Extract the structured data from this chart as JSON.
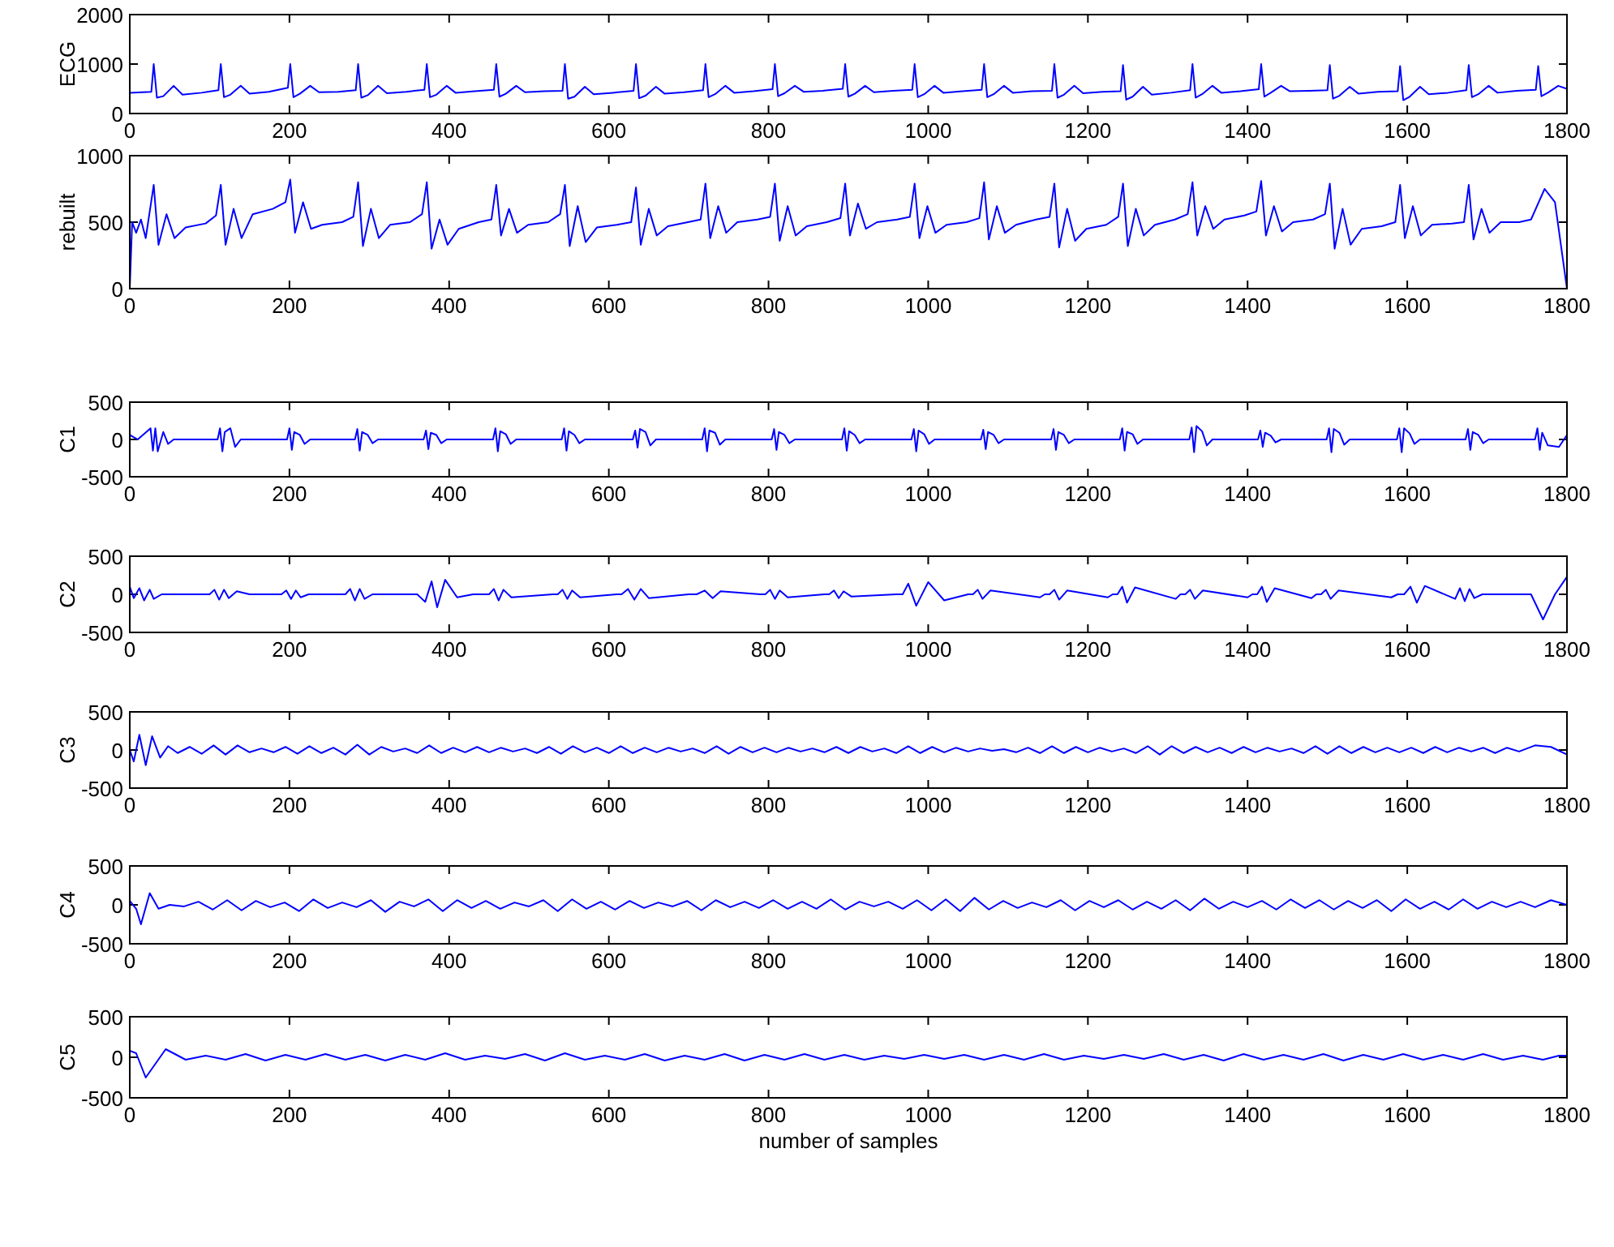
{
  "chart_data": [
    {
      "type": "line",
      "ylabel": "ECG",
      "xlim": [
        0,
        1800
      ],
      "xticks": [
        0,
        200,
        400,
        600,
        800,
        1000,
        1200,
        1400,
        1600,
        1800
      ],
      "ylim": [
        0,
        2000
      ],
      "yticks": [
        0,
        1000,
        2000
      ],
      "x": [
        0,
        27,
        30,
        34,
        42,
        55,
        66,
        90,
        111,
        114,
        118,
        126,
        139,
        150,
        174,
        198,
        201,
        205,
        213,
        226,
        237,
        261,
        283,
        286,
        290,
        298,
        311,
        322,
        346,
        369,
        372,
        376,
        384,
        397,
        408,
        432,
        456,
        459,
        463,
        471,
        484,
        495,
        519,
        542,
        545,
        549,
        557,
        570,
        581,
        605,
        631,
        634,
        638,
        646,
        659,
        670,
        694,
        718,
        721,
        725,
        733,
        746,
        757,
        781,
        805,
        808,
        812,
        820,
        833,
        844,
        868,
        893,
        896,
        900,
        908,
        921,
        932,
        956,
        980,
        983,
        987,
        995,
        1008,
        1019,
        1043,
        1067,
        1070,
        1074,
        1082,
        1095,
        1106,
        1130,
        1155,
        1158,
        1162,
        1170,
        1183,
        1194,
        1218,
        1241,
        1244,
        1248,
        1256,
        1269,
        1280,
        1304,
        1328,
        1331,
        1335,
        1343,
        1356,
        1367,
        1391,
        1414,
        1417,
        1421,
        1429,
        1442,
        1453,
        1477,
        1500,
        1503,
        1507,
        1515,
        1528,
        1539,
        1563,
        1588,
        1591,
        1595,
        1603,
        1616,
        1627,
        1651,
        1674,
        1677,
        1681,
        1689,
        1702,
        1713,
        1737,
        1761,
        1764,
        1768,
        1776,
        1789,
        1800
      ],
      "series": [
        {
          "color": "#0000ff",
          "values": [
            420,
            440,
            1000,
            320,
            350,
            560,
            380,
            420,
            470,
            1000,
            330,
            380,
            560,
            400,
            440,
            520,
            1000,
            330,
            400,
            560,
            430,
            440,
            470,
            1000,
            320,
            370,
            560,
            410,
            440,
            480,
            1000,
            330,
            380,
            560,
            420,
            450,
            480,
            1000,
            340,
            400,
            560,
            430,
            450,
            460,
            1000,
            300,
            340,
            540,
            390,
            420,
            460,
            1000,
            310,
            360,
            540,
            400,
            430,
            470,
            1000,
            330,
            390,
            560,
            420,
            450,
            490,
            1000,
            350,
            410,
            560,
            440,
            460,
            500,
            1000,
            340,
            400,
            560,
            430,
            460,
            480,
            1000,
            330,
            390,
            560,
            420,
            450,
            480,
            1000,
            330,
            390,
            560,
            420,
            450,
            460,
            1000,
            320,
            380,
            560,
            410,
            440,
            450,
            980,
            280,
            340,
            540,
            380,
            420,
            470,
            1000,
            320,
            390,
            560,
            420,
            450,
            490,
            1000,
            340,
            420,
            560,
            450,
            460,
            470,
            980,
            300,
            360,
            540,
            400,
            440,
            450,
            960,
            270,
            340,
            540,
            390,
            420,
            470,
            980,
            330,
            390,
            560,
            420,
            460,
            480,
            960,
            350,
            420,
            560,
            500
          ]
        }
      ]
    },
    {
      "type": "line",
      "ylabel": "rebuilt",
      "xlim": [
        0,
        1800
      ],
      "xticks": [
        0,
        200,
        400,
        600,
        800,
        1000,
        1200,
        1400,
        1600,
        1800
      ],
      "ylim": [
        0,
        1000
      ],
      "yticks": [
        0,
        500,
        1000
      ],
      "x": [
        0,
        3,
        8,
        14,
        20,
        30,
        36,
        46,
        56,
        70,
        95,
        108,
        114,
        120,
        130,
        140,
        154,
        179,
        195,
        201,
        207,
        217,
        227,
        241,
        266,
        280,
        286,
        292,
        302,
        312,
        326,
        351,
        366,
        372,
        378,
        388,
        398,
        412,
        437,
        453,
        459,
        465,
        475,
        485,
        499,
        524,
        539,
        545,
        551,
        561,
        571,
        585,
        610,
        628,
        634,
        640,
        650,
        660,
        674,
        699,
        715,
        721,
        727,
        737,
        747,
        761,
        786,
        802,
        808,
        814,
        824,
        834,
        848,
        873,
        890,
        896,
        902,
        912,
        922,
        936,
        961,
        977,
        983,
        989,
        999,
        1009,
        1023,
        1048,
        1064,
        1070,
        1076,
        1086,
        1096,
        1110,
        1135,
        1152,
        1158,
        1164,
        1174,
        1184,
        1198,
        1223,
        1238,
        1244,
        1250,
        1260,
        1270,
        1284,
        1309,
        1325,
        1331,
        1337,
        1347,
        1357,
        1371,
        1396,
        1411,
        1417,
        1423,
        1433,
        1443,
        1457,
        1482,
        1497,
        1503,
        1509,
        1519,
        1529,
        1543,
        1568,
        1585,
        1591,
        1597,
        1607,
        1617,
        1631,
        1656,
        1671,
        1677,
        1683,
        1693,
        1703,
        1717,
        1740,
        1755,
        1772,
        1785,
        1800
      ],
      "series": [
        {
          "color": "#0000ff",
          "values": [
            0,
            500,
            420,
            520,
            380,
            780,
            330,
            560,
            380,
            460,
            490,
            550,
            780,
            330,
            600,
            380,
            560,
            600,
            650,
            820,
            420,
            650,
            450,
            480,
            500,
            540,
            800,
            320,
            600,
            380,
            480,
            500,
            560,
            800,
            300,
            520,
            330,
            450,
            500,
            520,
            780,
            400,
            600,
            420,
            480,
            500,
            560,
            780,
            320,
            620,
            350,
            460,
            480,
            500,
            760,
            330,
            600,
            400,
            470,
            500,
            520,
            790,
            380,
            620,
            420,
            500,
            520,
            540,
            790,
            360,
            620,
            400,
            470,
            500,
            530,
            790,
            400,
            640,
            450,
            500,
            520,
            540,
            790,
            380,
            620,
            420,
            480,
            500,
            530,
            800,
            370,
            620,
            420,
            480,
            520,
            540,
            790,
            310,
            600,
            360,
            450,
            480,
            540,
            790,
            320,
            600,
            400,
            480,
            520,
            560,
            800,
            400,
            620,
            450,
            520,
            550,
            580,
            810,
            400,
            620,
            430,
            500,
            520,
            560,
            790,
            300,
            600,
            330,
            450,
            470,
            500,
            780,
            380,
            620,
            400,
            480,
            490,
            500,
            780,
            370,
            600,
            420,
            500,
            500,
            520,
            750,
            650,
            0
          ]
        }
      ]
    },
    {
      "type": "line",
      "ylabel": "C1",
      "xlim": [
        0,
        1800
      ],
      "xticks": [
        0,
        200,
        400,
        600,
        800,
        1000,
        1200,
        1400,
        1600,
        1800
      ],
      "ylim": [
        -500,
        500
      ],
      "yticks": [
        -500,
        0,
        500
      ],
      "x": [
        0,
        10,
        26,
        29,
        32,
        35,
        42,
        48,
        55,
        110,
        113,
        116,
        119,
        126,
        132,
        139,
        197,
        200,
        203,
        206,
        213,
        219,
        226,
        282,
        285,
        288,
        291,
        298,
        304,
        311,
        368,
        371,
        374,
        377,
        384,
        390,
        397,
        455,
        458,
        461,
        464,
        471,
        477,
        484,
        541,
        544,
        547,
        550,
        557,
        563,
        570,
        630,
        633,
        636,
        639,
        646,
        652,
        659,
        717,
        720,
        723,
        726,
        733,
        739,
        746,
        804,
        807,
        810,
        813,
        820,
        826,
        833,
        892,
        895,
        898,
        901,
        908,
        914,
        921,
        979,
        982,
        985,
        988,
        995,
        1001,
        1008,
        1066,
        1069,
        1072,
        1075,
        1082,
        1088,
        1095,
        1154,
        1157,
        1160,
        1163,
        1170,
        1176,
        1183,
        1240,
        1243,
        1246,
        1249,
        1256,
        1262,
        1269,
        1327,
        1330,
        1333,
        1336,
        1343,
        1349,
        1356,
        1413,
        1416,
        1419,
        1422,
        1429,
        1435,
        1442,
        1499,
        1502,
        1505,
        1508,
        1515,
        1521,
        1528,
        1587,
        1590,
        1593,
        1596,
        1603,
        1609,
        1616,
        1673,
        1676,
        1679,
        1682,
        1689,
        1695,
        1702,
        1760,
        1763,
        1766,
        1769,
        1776,
        1790,
        1800
      ],
      "series": [
        {
          "color": "#0000ff",
          "values": [
            60,
            0,
            150,
            -150,
            150,
            -160,
            100,
            -60,
            0,
            0,
            150,
            -160,
            100,
            150,
            -100,
            0,
            0,
            150,
            -140,
            100,
            60,
            -60,
            0,
            0,
            140,
            -150,
            100,
            60,
            -50,
            0,
            0,
            120,
            -130,
            90,
            60,
            -50,
            0,
            0,
            150,
            -160,
            110,
            70,
            -60,
            0,
            0,
            150,
            -150,
            110,
            60,
            -50,
            0,
            0,
            120,
            -110,
            140,
            100,
            -80,
            0,
            0,
            150,
            -160,
            120,
            90,
            -70,
            0,
            0,
            140,
            -140,
            100,
            60,
            -50,
            0,
            0,
            150,
            -150,
            110,
            60,
            -50,
            0,
            0,
            140,
            -160,
            120,
            70,
            -60,
            0,
            0,
            130,
            -130,
            100,
            60,
            -50,
            0,
            0,
            140,
            -140,
            100,
            60,
            -50,
            0,
            0,
            150,
            -150,
            100,
            70,
            -60,
            0,
            0,
            160,
            -170,
            180,
            110,
            -80,
            0,
            0,
            120,
            -100,
            90,
            50,
            -40,
            0,
            0,
            150,
            -170,
            140,
            90,
            -70,
            0,
            0,
            150,
            -170,
            150,
            80,
            -60,
            0,
            0,
            140,
            -140,
            100,
            60,
            -50,
            0,
            0,
            150,
            -140,
            90,
            -80,
            -100,
            60
          ]
        }
      ]
    },
    {
      "type": "line",
      "ylabel": "C2",
      "xlim": [
        0,
        1800
      ],
      "xticks": [
        0,
        200,
        400,
        600,
        800,
        1000,
        1200,
        1400,
        1600,
        1800
      ],
      "ylim": [
        -500,
        500
      ],
      "yticks": [
        -500,
        0,
        500
      ],
      "x": [
        0,
        5,
        12,
        18,
        25,
        30,
        40,
        100,
        106,
        112,
        118,
        124,
        134,
        150,
        190,
        196,
        202,
        208,
        214,
        224,
        270,
        276,
        282,
        288,
        294,
        304,
        360,
        370,
        378,
        385,
        395,
        410,
        430,
        450,
        456,
        462,
        468,
        478,
        530,
        536,
        542,
        548,
        554,
        564,
        610,
        616,
        624,
        632,
        640,
        650,
        700,
        710,
        720,
        730,
        740,
        790,
        796,
        802,
        808,
        814,
        824,
        870,
        876,
        882,
        888,
        894,
        904,
        960,
        968,
        975,
        985,
        1000,
        1020,
        1050,
        1056,
        1062,
        1068,
        1078,
        1140,
        1146,
        1152,
        1158,
        1164,
        1174,
        1225,
        1231,
        1237,
        1243,
        1249,
        1259,
        1310,
        1316,
        1322,
        1328,
        1334,
        1344,
        1400,
        1406,
        1412,
        1418,
        1424,
        1434,
        1480,
        1486,
        1492,
        1498,
        1504,
        1514,
        1580,
        1588,
        1596,
        1604,
        1612,
        1622,
        1660,
        1666,
        1672,
        1678,
        1684,
        1694,
        1755,
        1770,
        1785,
        1800
      ],
      "series": [
        {
          "color": "#0000ff",
          "values": [
            100,
            -50,
            80,
            -80,
            60,
            -60,
            0,
            0,
            60,
            -70,
            60,
            -50,
            40,
            0,
            0,
            50,
            -60,
            50,
            -40,
            0,
            0,
            70,
            -80,
            70,
            -60,
            0,
            0,
            -100,
            170,
            -170,
            190,
            -40,
            0,
            0,
            70,
            -80,
            60,
            -40,
            0,
            0,
            60,
            -60,
            50,
            -40,
            0,
            0,
            70,
            -70,
            70,
            -50,
            0,
            0,
            50,
            -50,
            40,
            0,
            0,
            60,
            -60,
            50,
            -40,
            0,
            0,
            50,
            -50,
            40,
            -30,
            0,
            0,
            140,
            -150,
            160,
            -80,
            0,
            0,
            60,
            -60,
            50,
            -40,
            0,
            0,
            60,
            -70,
            50,
            -40,
            0,
            0,
            100,
            -110,
            90,
            -60,
            0,
            0,
            60,
            -60,
            50,
            -40,
            0,
            0,
            100,
            -100,
            80,
            -50,
            0,
            0,
            60,
            -60,
            50,
            -40,
            0,
            0,
            100,
            -110,
            110,
            -60,
            80,
            -90,
            70,
            -50,
            0,
            0,
            -330,
            0,
            230
          ]
        }
      ]
    },
    {
      "type": "line",
      "ylabel": "C3",
      "xlim": [
        0,
        1800
      ],
      "xticks": [
        0,
        200,
        400,
        600,
        800,
        1000,
        1200,
        1400,
        1600,
        1800
      ],
      "ylim": [
        -500,
        500
      ],
      "yticks": [
        -500,
        0,
        500
      ],
      "x": [
        0,
        5,
        12,
        20,
        28,
        38,
        48,
        60,
        75,
        90,
        105,
        120,
        135,
        150,
        165,
        180,
        195,
        210,
        225,
        240,
        255,
        270,
        285,
        300,
        315,
        330,
        345,
        360,
        375,
        390,
        405,
        420,
        435,
        450,
        465,
        480,
        495,
        510,
        525,
        540,
        555,
        570,
        585,
        600,
        615,
        630,
        645,
        660,
        675,
        690,
        705,
        720,
        735,
        750,
        765,
        780,
        795,
        810,
        825,
        840,
        855,
        870,
        885,
        900,
        915,
        930,
        945,
        960,
        975,
        990,
        1005,
        1020,
        1035,
        1050,
        1065,
        1080,
        1095,
        1110,
        1125,
        1140,
        1155,
        1170,
        1185,
        1200,
        1215,
        1230,
        1245,
        1260,
        1275,
        1290,
        1305,
        1320,
        1335,
        1350,
        1365,
        1380,
        1395,
        1410,
        1425,
        1440,
        1455,
        1470,
        1485,
        1500,
        1515,
        1530,
        1545,
        1560,
        1575,
        1590,
        1605,
        1620,
        1635,
        1650,
        1665,
        1680,
        1695,
        1710,
        1725,
        1740,
        1760,
        1780,
        1800
      ],
      "series": [
        {
          "color": "#0000ff",
          "values": [
            0,
            -150,
            200,
            -200,
            180,
            -100,
            50,
            -40,
            40,
            -50,
            60,
            -60,
            60,
            -30,
            20,
            -30,
            40,
            -50,
            50,
            -40,
            30,
            -60,
            70,
            -60,
            40,
            -20,
            20,
            -40,
            60,
            -40,
            30,
            -30,
            40,
            -30,
            30,
            -20,
            20,
            -40,
            40,
            -50,
            50,
            -30,
            30,
            -40,
            50,
            -40,
            30,
            -30,
            30,
            -20,
            20,
            -40,
            50,
            -50,
            40,
            -30,
            30,
            -30,
            30,
            -20,
            20,
            -30,
            40,
            -40,
            40,
            -20,
            20,
            -40,
            50,
            -40,
            40,
            -30,
            30,
            -20,
            20,
            -10,
            10,
            -30,
            30,
            -40,
            50,
            -40,
            40,
            -30,
            30,
            -20,
            20,
            -40,
            50,
            -60,
            50,
            -40,
            40,
            -30,
            30,
            -40,
            40,
            -30,
            30,
            -20,
            20,
            -40,
            50,
            -50,
            50,
            -40,
            40,
            -30,
            30,
            -30,
            30,
            -40,
            40,
            -30,
            30,
            -20,
            30,
            -40,
            30,
            -20,
            60,
            40,
            -60
          ]
        }
      ]
    },
    {
      "type": "line",
      "ylabel": "C4",
      "xlim": [
        0,
        1800
      ],
      "xticks": [
        0,
        200,
        400,
        600,
        800,
        1000,
        1200,
        1400,
        1600,
        1800
      ],
      "ylim": [
        -500,
        500
      ],
      "yticks": [
        -500,
        0,
        500
      ],
      "x": [
        0,
        8,
        14,
        25,
        36,
        50,
        68,
        86,
        104,
        122,
        140,
        158,
        176,
        194,
        212,
        230,
        248,
        266,
        284,
        302,
        320,
        338,
        356,
        374,
        392,
        410,
        428,
        446,
        464,
        482,
        500,
        518,
        536,
        554,
        572,
        590,
        608,
        626,
        644,
        662,
        680,
        698,
        716,
        734,
        752,
        770,
        788,
        806,
        824,
        842,
        860,
        878,
        896,
        914,
        932,
        950,
        968,
        986,
        1004,
        1022,
        1040,
        1058,
        1076,
        1094,
        1112,
        1130,
        1148,
        1166,
        1184,
        1202,
        1220,
        1238,
        1256,
        1274,
        1292,
        1310,
        1328,
        1346,
        1364,
        1382,
        1400,
        1418,
        1436,
        1454,
        1472,
        1490,
        1508,
        1526,
        1544,
        1562,
        1580,
        1598,
        1616,
        1634,
        1652,
        1670,
        1688,
        1706,
        1724,
        1742,
        1760,
        1780,
        1800
      ],
      "series": [
        {
          "color": "#0000ff",
          "values": [
            50,
            -50,
            -250,
            150,
            -50,
            0,
            -20,
            40,
            -60,
            60,
            -70,
            50,
            -30,
            30,
            -80,
            70,
            -40,
            30,
            -30,
            60,
            -90,
            40,
            -20,
            70,
            -80,
            60,
            -40,
            50,
            -50,
            30,
            -20,
            60,
            -80,
            70,
            -50,
            40,
            -60,
            50,
            -40,
            30,
            -20,
            50,
            -70,
            60,
            -30,
            40,
            -40,
            60,
            -50,
            40,
            -50,
            70,
            -60,
            40,
            -20,
            40,
            -50,
            60,
            -70,
            70,
            -80,
            90,
            -60,
            50,
            -40,
            30,
            -30,
            60,
            -70,
            50,
            -30,
            60,
            -60,
            40,
            -50,
            60,
            -70,
            80,
            -50,
            40,
            -30,
            50,
            -60,
            70,
            -40,
            60,
            -60,
            50,
            -40,
            60,
            -80,
            70,
            -50,
            40,
            -60,
            70,
            -50,
            40,
            -30,
            40,
            -30,
            60,
            0
          ]
        }
      ]
    },
    {
      "type": "line",
      "ylabel": "C5",
      "xlabel": "number of samples",
      "xlim": [
        0,
        1800
      ],
      "xticks": [
        0,
        200,
        400,
        600,
        800,
        1000,
        1200,
        1400,
        1600,
        1800
      ],
      "ylim": [
        -500,
        500
      ],
      "yticks": [
        -500,
        0,
        500
      ],
      "x": [
        0,
        8,
        20,
        45,
        70,
        95,
        120,
        145,
        170,
        195,
        220,
        245,
        270,
        295,
        320,
        345,
        370,
        395,
        420,
        445,
        470,
        495,
        520,
        545,
        570,
        595,
        620,
        645,
        670,
        695,
        720,
        745,
        770,
        795,
        820,
        845,
        870,
        895,
        920,
        945,
        970,
        995,
        1020,
        1045,
        1070,
        1095,
        1120,
        1145,
        1170,
        1195,
        1220,
        1245,
        1270,
        1295,
        1320,
        1345,
        1370,
        1395,
        1420,
        1445,
        1470,
        1495,
        1520,
        1545,
        1570,
        1595,
        1620,
        1645,
        1670,
        1695,
        1720,
        1745,
        1770,
        1790,
        1800
      ],
      "series": [
        {
          "color": "#0000ff",
          "values": [
            80,
            50,
            -250,
            100,
            -30,
            20,
            -30,
            40,
            -40,
            30,
            -30,
            40,
            -30,
            30,
            -40,
            30,
            -30,
            50,
            -30,
            20,
            -20,
            40,
            -40,
            50,
            -30,
            20,
            -30,
            40,
            -40,
            20,
            -30,
            40,
            -40,
            30,
            -30,
            40,
            -30,
            30,
            -30,
            20,
            -20,
            30,
            -20,
            30,
            -30,
            30,
            -30,
            40,
            -30,
            20,
            -20,
            30,
            -20,
            40,
            -30,
            30,
            -40,
            40,
            -30,
            30,
            -30,
            40,
            -40,
            30,
            -30,
            40,
            -30,
            30,
            -30,
            40,
            -30,
            20,
            -30,
            20,
            20
          ]
        }
      ]
    }
  ]
}
